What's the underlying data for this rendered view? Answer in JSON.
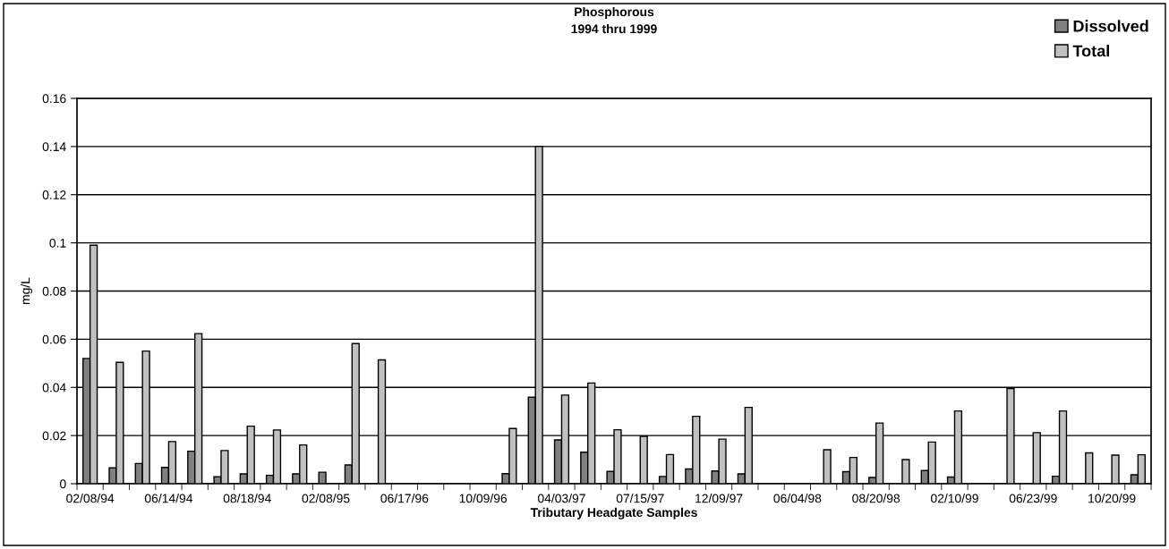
{
  "chart_data": {
    "type": "bar",
    "title": "Phosphorous\n1994 thru 1999",
    "xlabel": "Tributary Headgate Samples",
    "ylabel": "mg/L",
    "categories": [
      "02/08/94",
      null,
      null,
      "06/14/94",
      null,
      null,
      "08/18/94",
      null,
      null,
      "02/08/95",
      null,
      null,
      "06/17/96",
      null,
      null,
      "10/09/96",
      null,
      null,
      "04/03/97",
      null,
      null,
      "07/15/97",
      null,
      null,
      "12/09/97",
      null,
      null,
      "06/04/98",
      null,
      null,
      "08/20/98",
      null,
      null,
      "02/10/99",
      null,
      null,
      "06/23/99",
      null,
      null,
      "10/20/99",
      null
    ],
    "series": [
      {
        "name": "Dissolved",
        "color": "#808080",
        "values": [
          0.052,
          0.0066,
          0.0084,
          0.0068,
          0.0135,
          0.0029,
          0.0041,
          0.0035,
          0.0041,
          0.0048,
          0.0078,
          null,
          null,
          null,
          null,
          null,
          0.0042,
          0.0359,
          0.0182,
          0.0131,
          0.0051,
          null,
          0.003,
          0.0061,
          0.0053,
          0.0041,
          null,
          null,
          null,
          0.005,
          0.0026,
          null,
          0.0055,
          0.0028,
          null,
          null,
          null,
          0.0031,
          null,
          null,
          0.0037
        ]
      },
      {
        "name": "Total",
        "color": "#c0c0c0",
        "values": [
          0.099,
          0.0504,
          0.0551,
          0.0175,
          0.0623,
          0.0138,
          0.0239,
          0.0223,
          0.0161,
          null,
          0.0582,
          0.0514,
          null,
          null,
          null,
          null,
          0.0229,
          0.14,
          0.0368,
          0.0418,
          0.0224,
          0.0197,
          0.0121,
          0.028,
          0.0185,
          0.0317,
          null,
          null,
          0.0141,
          0.0109,
          0.0252,
          0.01,
          0.0173,
          0.0302,
          null,
          0.0395,
          0.0212,
          0.0302,
          0.0128,
          0.0119,
          0.012
        ]
      }
    ],
    "ylim": [
      0,
      0.16
    ],
    "yticks": [
      0,
      0.02,
      0.04,
      0.06,
      0.08,
      0.1,
      0.12,
      0.14,
      0.16
    ],
    "grid": "y",
    "legend": "top right"
  }
}
